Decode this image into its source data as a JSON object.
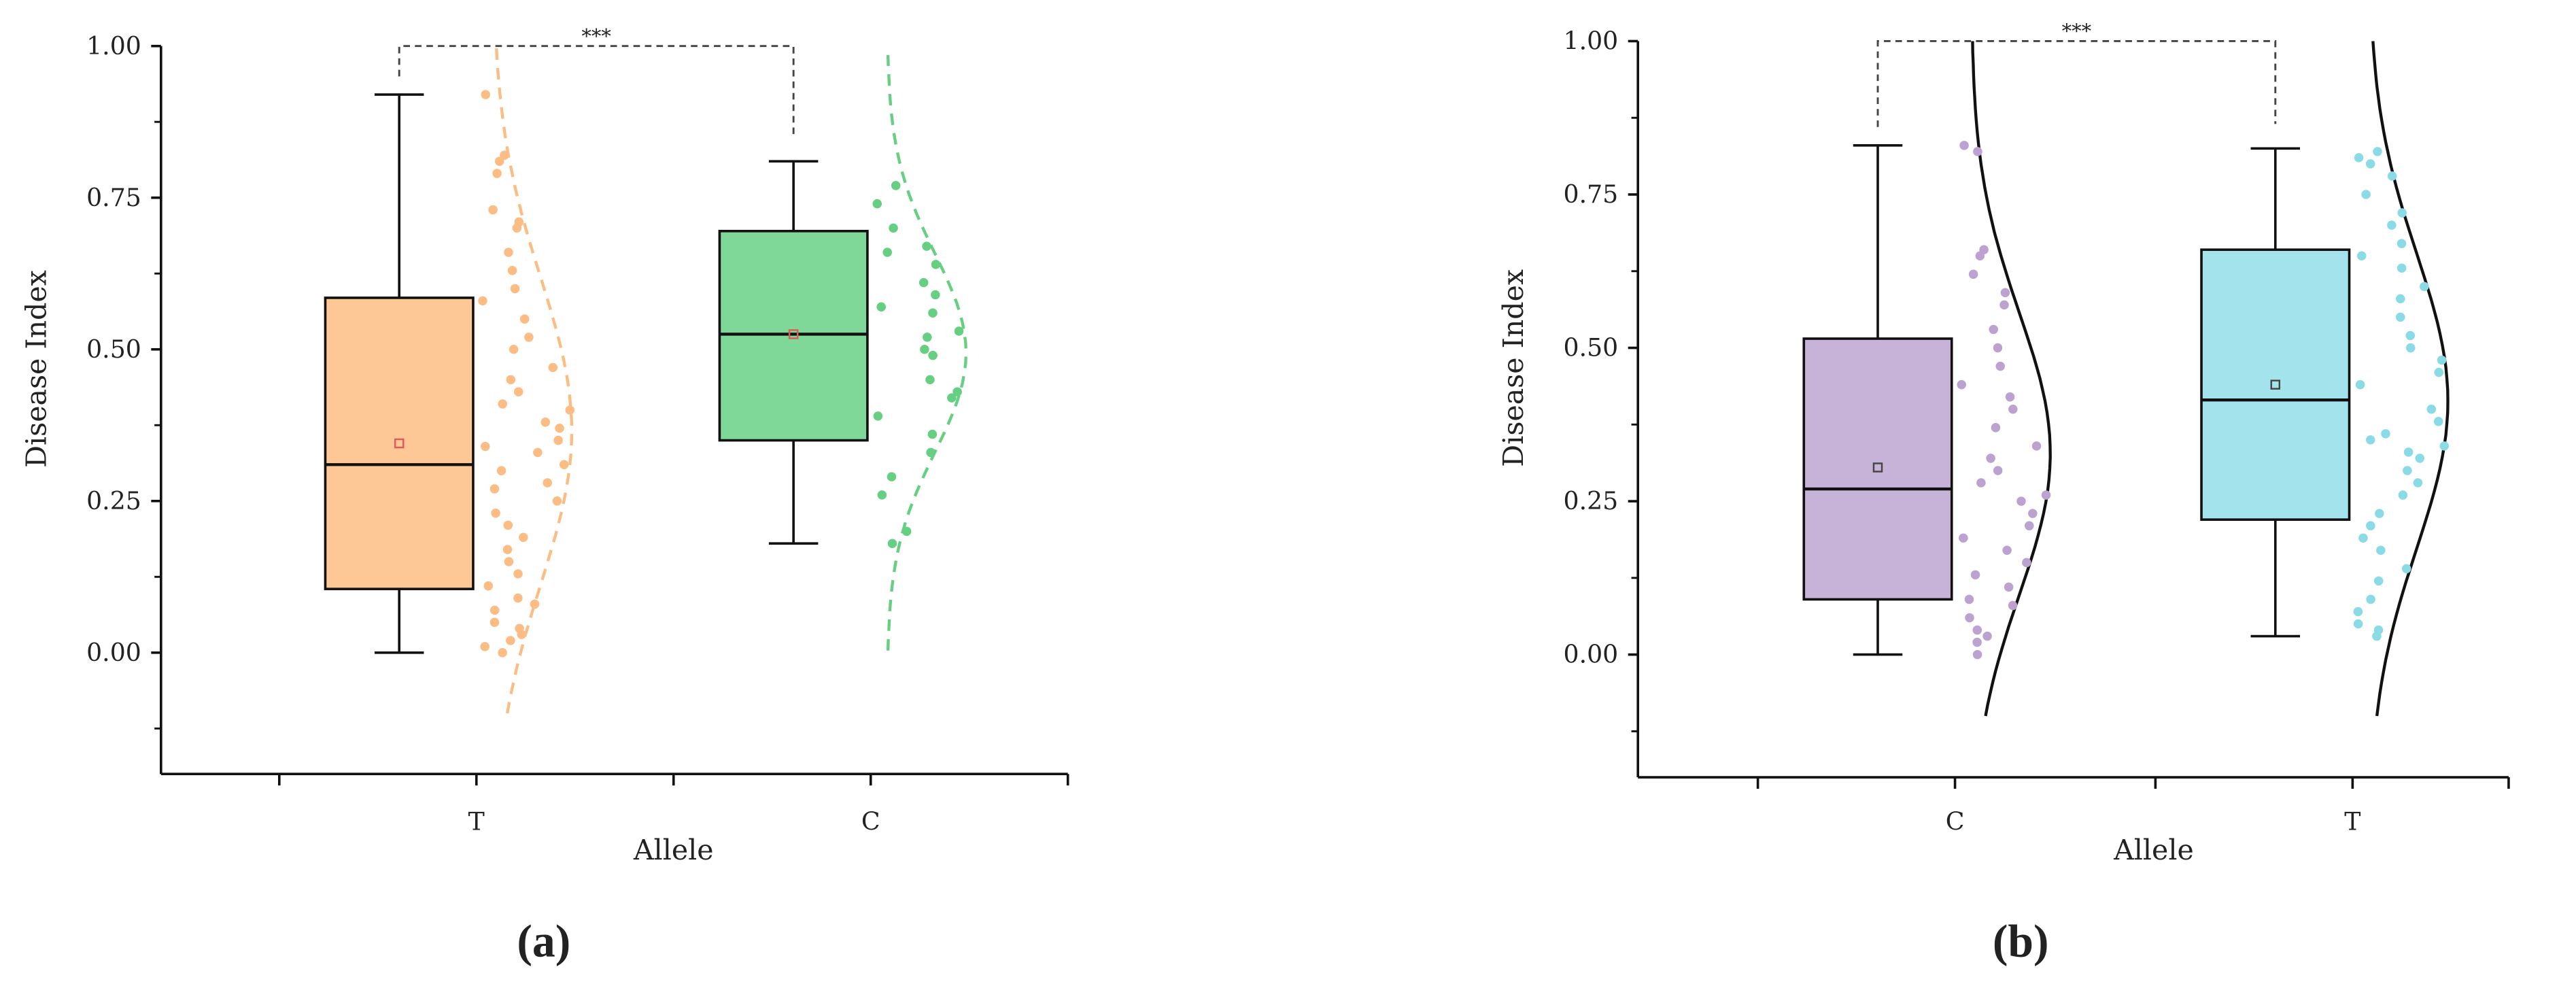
{
  "chart_data": [
    {
      "type": "box",
      "panel_label": "(a)",
      "y_label": "Disease Index",
      "x_label": "Allele",
      "ylim": [
        -0.2,
        1.0
      ],
      "yticks": [
        {
          "value": 0,
          "label": "0.00"
        },
        {
          "value": 0.25,
          "label": "0.25"
        },
        {
          "value": 0.5,
          "label": "0.50"
        },
        {
          "value": 0.75,
          "label": "0.75"
        },
        {
          "value": 1,
          "label": "1.00"
        }
      ],
      "minor_yticks": [
        -0.125,
        0.125,
        0.375,
        0.625,
        0.875
      ],
      "significance": "***",
      "density_line": "dashed",
      "mean_color": "#e05a5a",
      "groups": [
        {
          "name": "T",
          "color": "#fec896",
          "point_color": "#fbbd84",
          "density_color": "#fbbd84",
          "min": 0,
          "q1": 0.105,
          "median": 0.31,
          "q3": 0.585,
          "max": 0.92,
          "mean": 0.345,
          "points": [
            0.92,
            0.82,
            0.81,
            0.79,
            0.73,
            0.71,
            0.7,
            0.66,
            0.63,
            0.6,
            0.58,
            0.55,
            0.52,
            0.5,
            0.47,
            0.45,
            0.43,
            0.41,
            0.4,
            0.38,
            0.37,
            0.35,
            0.34,
            0.33,
            0.31,
            0.3,
            0.28,
            0.27,
            0.25,
            0.23,
            0.21,
            0.19,
            0.17,
            0.15,
            0.13,
            0.11,
            0.09,
            0.08,
            0.07,
            0.05,
            0.04,
            0.03,
            0.02,
            0.01,
            0
          ]
        },
        {
          "name": "C",
          "color": "#7fd898",
          "point_color": "#66cf82",
          "density_color": "#66cf82",
          "min": 0.18,
          "q1": 0.35,
          "median": 0.525,
          "q3": 0.695,
          "max": 0.81,
          "mean": 0.525,
          "points": [
            0.77,
            0.74,
            0.7,
            0.67,
            0.66,
            0.64,
            0.61,
            0.59,
            0.57,
            0.56,
            0.53,
            0.52,
            0.5,
            0.49,
            0.45,
            0.43,
            0.42,
            0.39,
            0.36,
            0.33,
            0.29,
            0.26,
            0.2,
            0.18
          ]
        }
      ]
    },
    {
      "type": "box",
      "panel_label": "(b)",
      "y_label": "Disease Index",
      "x_label": "Allele",
      "ylim": [
        -0.2,
        1.0
      ],
      "yticks": [
        {
          "value": 0,
          "label": "0.00"
        },
        {
          "value": 0.25,
          "label": "0.25"
        },
        {
          "value": 0.5,
          "label": "0.50"
        },
        {
          "value": 0.75,
          "label": "0.75"
        },
        {
          "value": 1,
          "label": "1.00"
        }
      ],
      "minor_yticks": [
        -0.125,
        0.125,
        0.375,
        0.625,
        0.875
      ],
      "significance": "***",
      "density_line": "solid",
      "mean_color": "#444444",
      "groups": [
        {
          "name": "C",
          "color": "#c8b3d8",
          "point_color": "#bba2d0",
          "density_color": "#111111",
          "min": 0,
          "q1": 0.09,
          "median": 0.27,
          "q3": 0.515,
          "max": 0.83,
          "mean": 0.305,
          "points": [
            0.83,
            0.82,
            0.66,
            0.65,
            0.62,
            0.59,
            0.57,
            0.53,
            0.5,
            0.47,
            0.44,
            0.42,
            0.4,
            0.37,
            0.34,
            0.32,
            0.3,
            0.28,
            0.26,
            0.25,
            0.23,
            0.21,
            0.19,
            0.17,
            0.15,
            0.13,
            0.11,
            0.09,
            0.08,
            0.06,
            0.04,
            0.03,
            0.02,
            0
          ]
        },
        {
          "name": "T",
          "color": "#a3e4ec",
          "point_color": "#8adbe6",
          "density_color": "#111111",
          "min": 0.03,
          "q1": 0.22,
          "median": 0.415,
          "q3": 0.66,
          "max": 0.825,
          "mean": 0.44,
          "points": [
            0.82,
            0.81,
            0.8,
            0.78,
            0.75,
            0.72,
            0.7,
            0.67,
            0.65,
            0.63,
            0.6,
            0.58,
            0.55,
            0.52,
            0.5,
            0.48,
            0.46,
            0.44,
            0.4,
            0.38,
            0.36,
            0.35,
            0.34,
            0.33,
            0.32,
            0.3,
            0.28,
            0.26,
            0.23,
            0.21,
            0.19,
            0.17,
            0.14,
            0.12,
            0.09,
            0.07,
            0.05,
            0.04,
            0.03
          ]
        }
      ]
    }
  ]
}
